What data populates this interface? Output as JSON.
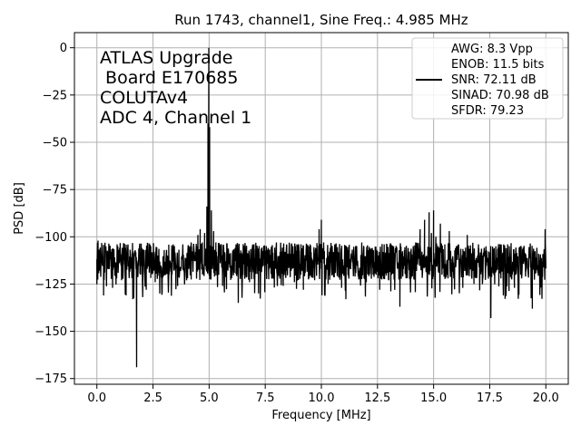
{
  "chart_data": {
    "type": "line",
    "title": "Run 1743, channel1, Sine Freq.: 4.985 MHz",
    "xlabel": "Frequency [MHz]",
    "ylabel": "PSD [dB]",
    "xlim": [
      -1.0,
      21.0
    ],
    "ylim": [
      -178,
      8
    ],
    "grid": true,
    "x_ticks": [
      0.0,
      2.5,
      5.0,
      7.5,
      10.0,
      12.5,
      15.0,
      17.5,
      20.0
    ],
    "x_tick_labels": [
      "0.0",
      "2.5",
      "5.0",
      "7.5",
      "10.0",
      "12.5",
      "15.0",
      "17.5",
      "20.0"
    ],
    "y_ticks": [
      0,
      -25,
      -50,
      -75,
      -100,
      -125,
      -150,
      -175
    ],
    "y_tick_labels": [
      "0",
      "−25",
      "−50",
      "−75",
      "−100",
      "−125",
      "−150",
      "−175"
    ],
    "annotation_lines": [
      "ATLAS Upgrade",
      " Board E170685",
      "COLUTAv4",
      "ADC 4, Channel 1"
    ],
    "legend": {
      "placement": "top-right",
      "entries": [
        "AWG: 8.3 Vpp",
        "ENOB: 11.5 bits",
        "SNR: 72.11 dB",
        "SINAD: 70.98 dB",
        "SFDR: 79.23"
      ]
    },
    "series": [
      {
        "color": "#000000",
        "noise_floor_db": -113,
        "noise_range_db": [
          -125,
          -103
        ],
        "points": [
          [
            0.0,
            -112
          ],
          [
            0.05,
            -102
          ],
          [
            0.1,
            -118
          ],
          [
            0.3,
            -131
          ],
          [
            0.5,
            -108
          ],
          [
            0.7,
            -127
          ],
          [
            0.9,
            -104
          ],
          [
            1.1,
            -123
          ],
          [
            1.3,
            -131
          ],
          [
            1.5,
            -109
          ],
          [
            1.6,
            -133
          ],
          [
            1.77,
            -169
          ],
          [
            1.85,
            -112
          ],
          [
            2.0,
            -106
          ],
          [
            2.2,
            -128
          ],
          [
            2.4,
            -105
          ],
          [
            2.6,
            -124
          ],
          [
            2.8,
            -130
          ],
          [
            3.0,
            -107
          ],
          [
            3.2,
            -121
          ],
          [
            3.4,
            -104
          ],
          [
            3.6,
            -126
          ],
          [
            3.8,
            -110
          ],
          [
            4.0,
            -123
          ],
          [
            4.2,
            -103
          ],
          [
            4.4,
            -108
          ],
          [
            4.5,
            -99
          ],
          [
            4.6,
            -96
          ],
          [
            4.7,
            -103
          ],
          [
            4.8,
            -98
          ],
          [
            4.9,
            -84
          ],
          [
            4.95,
            -40
          ],
          [
            4.985,
            0
          ],
          [
            5.02,
            -42
          ],
          [
            5.1,
            -86
          ],
          [
            5.2,
            -97
          ],
          [
            5.3,
            -103
          ],
          [
            5.4,
            -110
          ],
          [
            5.6,
            -126
          ],
          [
            5.8,
            -107
          ],
          [
            6.0,
            -117
          ],
          [
            6.2,
            -104
          ],
          [
            6.3,
            -135
          ],
          [
            6.5,
            -111
          ],
          [
            6.8,
            -124
          ],
          [
            7.0,
            -104
          ],
          [
            7.2,
            -130
          ],
          [
            7.5,
            -108
          ],
          [
            7.8,
            -121
          ],
          [
            8.0,
            -103
          ],
          [
            8.3,
            -126
          ],
          [
            8.5,
            -109
          ],
          [
            8.8,
            -124
          ],
          [
            9.0,
            -106
          ],
          [
            9.2,
            -128
          ],
          [
            9.5,
            -104
          ],
          [
            9.7,
            -123
          ],
          [
            9.9,
            -96
          ],
          [
            10.0,
            -91
          ],
          [
            10.1,
            -103
          ],
          [
            10.3,
            -125
          ],
          [
            10.6,
            -104
          ],
          [
            10.9,
            -127
          ],
          [
            11.2,
            -107
          ],
          [
            11.5,
            -121
          ],
          [
            11.8,
            -103
          ],
          [
            12.0,
            -124
          ],
          [
            12.3,
            -110
          ],
          [
            12.6,
            -128
          ],
          [
            12.8,
            -104
          ],
          [
            13.0,
            -123
          ],
          [
            13.3,
            -106
          ],
          [
            13.5,
            -137
          ],
          [
            13.7,
            -107
          ],
          [
            14.0,
            -122
          ],
          [
            14.2,
            -103
          ],
          [
            14.4,
            -96
          ],
          [
            14.6,
            -91
          ],
          [
            14.8,
            -87
          ],
          [
            14.9,
            -98
          ],
          [
            15.0,
            -86
          ],
          [
            15.1,
            -100
          ],
          [
            15.3,
            -93
          ],
          [
            15.5,
            -104
          ],
          [
            15.7,
            -97
          ],
          [
            15.9,
            -122
          ],
          [
            16.1,
            -104
          ],
          [
            16.3,
            -127
          ],
          [
            16.5,
            -99
          ],
          [
            16.8,
            -125
          ],
          [
            17.0,
            -104
          ],
          [
            17.2,
            -121
          ],
          [
            17.4,
            -113
          ],
          [
            17.55,
            -143
          ],
          [
            17.7,
            -106
          ],
          [
            18.0,
            -122
          ],
          [
            18.3,
            -104
          ],
          [
            18.6,
            -127
          ],
          [
            18.9,
            -106
          ],
          [
            19.1,
            -121
          ],
          [
            19.4,
            -138
          ],
          [
            19.6,
            -106
          ],
          [
            19.8,
            -126
          ],
          [
            19.97,
            -96
          ],
          [
            20.0,
            -115
          ]
        ]
      }
    ]
  }
}
